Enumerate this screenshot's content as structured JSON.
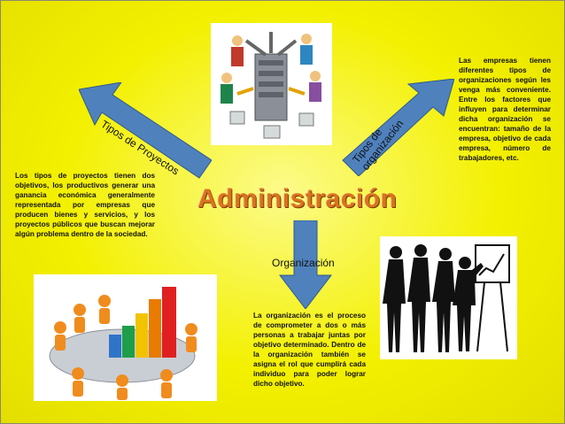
{
  "title": "Administración",
  "arrows": {
    "left_label": "Tipos de Proyectos",
    "right_label_line1": "Tipos de",
    "right_label_line2": "organización",
    "down_label": "Organización"
  },
  "texts": {
    "proyectos": "Los tipos de proyectos tienen dos objetivos, los productivos generar una ganancia económica generalmente representada por empresas que producen bienes y servicios, y los proyectos públicos que buscan mejorar algún problema dentro de la sociedad.",
    "tipos_organizacion": "Las empresas tienen diferentes tipos de organizaciones según les venga más conveniente. Entre los factores que influyen para determinar dicha organización se encuentran: tamaño de la empresa, objetivo de cada empresa, número de trabajadores, etc.",
    "organizacion": "La organización es el proceso de comprometer a dos o más personas a trabajar juntas por objetivo determinado. Dentro de la organización también se asigna el rol que cumplirá cada individuo para poder lograr dicho objetivo."
  },
  "colors": {
    "background": "#f3f000",
    "arrow_fill": "#4f81bd",
    "title": "#d9731f"
  },
  "icons": [
    "network-people-icon",
    "meeting-chart-icon",
    "presentation-silhouettes-icon"
  ]
}
